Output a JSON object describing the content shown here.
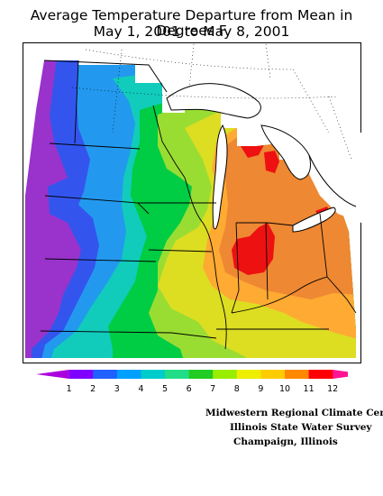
{
  "title_line1": "Average Temperature Departure from Mean in Degrees F",
  "title_line2": "May 1, 2001 to May 8, 2001",
  "legend": {
    "labels": [
      "1",
      "2",
      "3",
      "4",
      "5",
      "6",
      "7",
      "8",
      "9",
      "10",
      "11",
      "12"
    ],
    "colors": [
      "#aa00dd",
      "#8000ff",
      "#2060ff",
      "#00a0ff",
      "#00cccc",
      "#22dd88",
      "#22cc22",
      "#99ee00",
      "#eeee00",
      "#ffcc00",
      "#ff8800",
      "#ff0000",
      "#ff1493"
    ]
  },
  "region_colors": {
    "purple_west": "#9933cc",
    "blue_west": "#3355ee",
    "sky_plains": "#2299ee",
    "teal_plains": "#11ccbb",
    "green_midwest": "#00cc44",
    "lime": "#99dd33",
    "yellow": "#dddd22",
    "gold": "#ffaa33",
    "orange_great_lakes": "#ee8833",
    "red_michigan": "#ee1111",
    "lake_white": "#ffffff"
  },
  "credits": {
    "line1": "Midwestern Regional Climate Center",
    "line2": "Illinois State Water Survey",
    "line3": "Champaign, Illinois"
  }
}
